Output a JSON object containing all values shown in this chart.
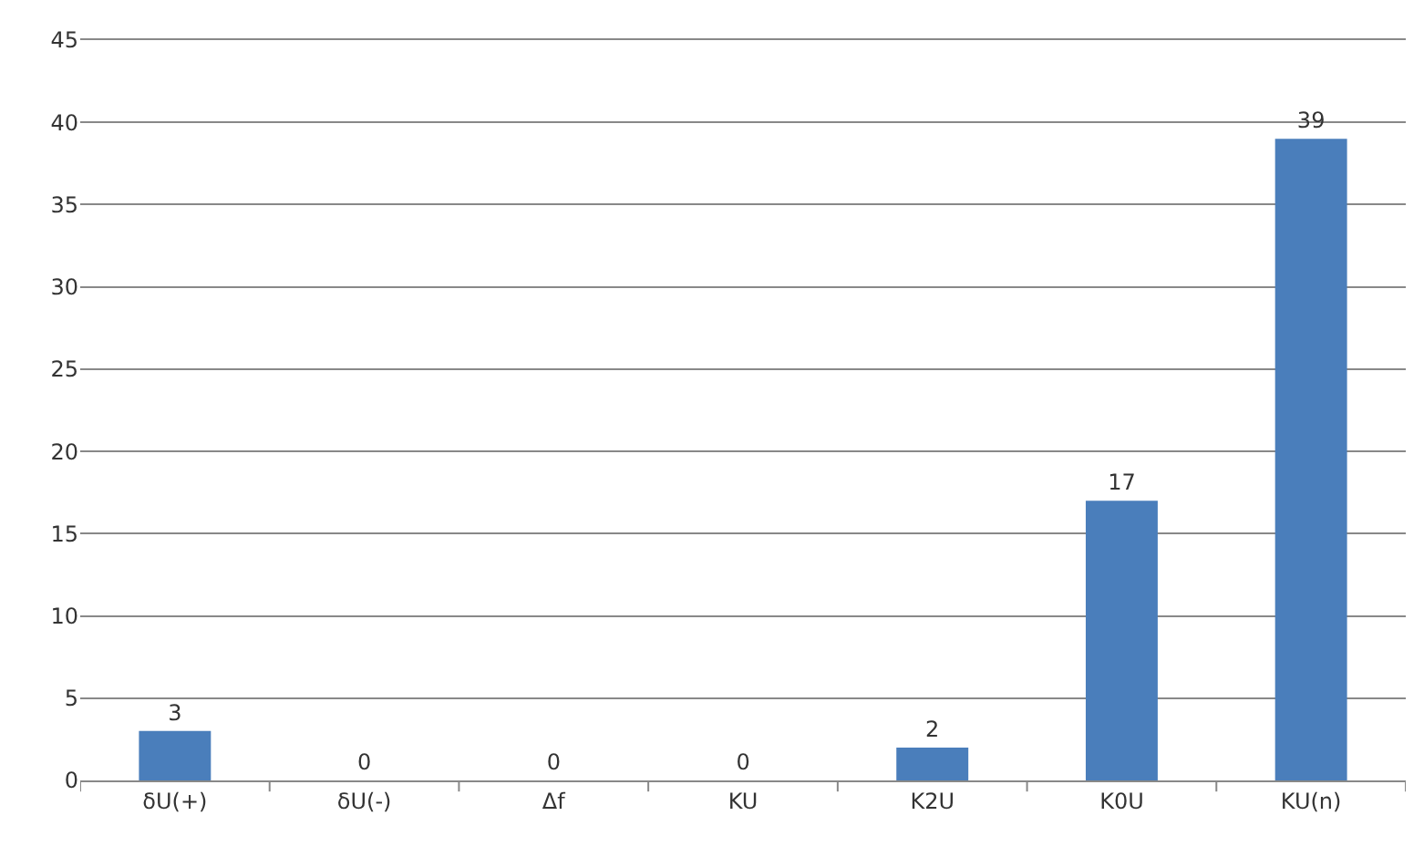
{
  "chart_data": {
    "type": "bar",
    "categories": [
      "δU(+)",
      "δU(-)",
      "Δf",
      "KU",
      "K2U",
      "K0U",
      "KU(n)"
    ],
    "values": [
      3,
      0,
      0,
      0,
      2,
      17,
      39
    ],
    "color": "#4a7ebb",
    "ylim": [
      0,
      45
    ],
    "yticks": [
      0,
      5,
      10,
      15,
      20,
      25,
      30,
      35,
      40,
      45
    ],
    "grid": "y",
    "data_labels": true
  }
}
